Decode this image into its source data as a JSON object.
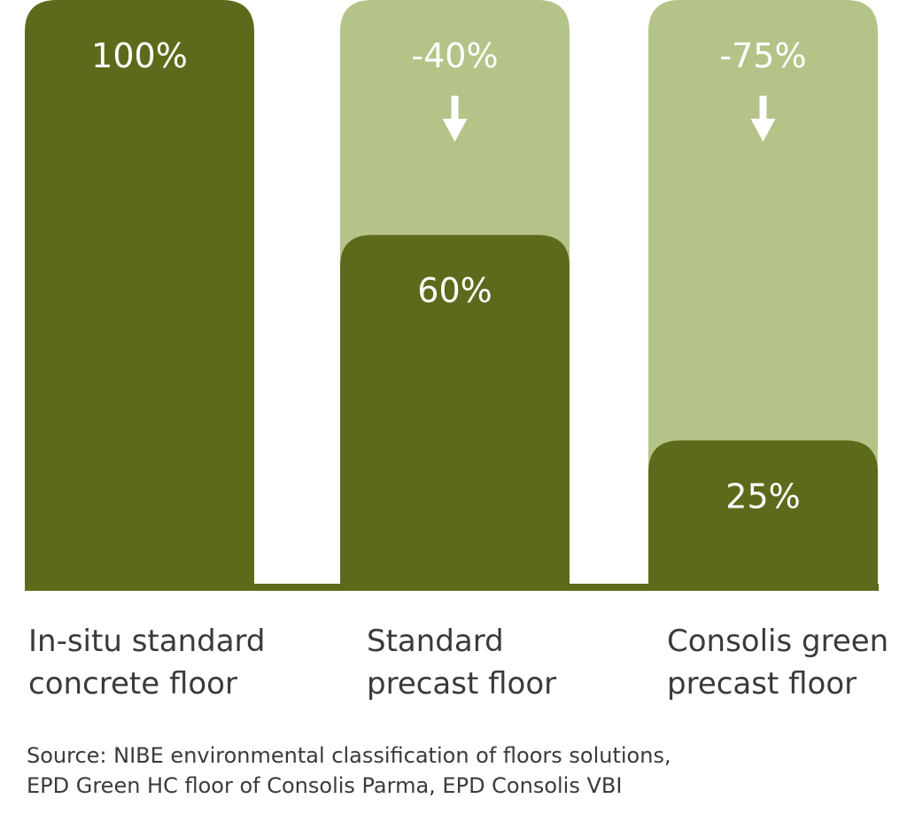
{
  "colors": {
    "dark_bar": "#5e6a1b",
    "light_bar": "#b4c387",
    "label_text": "#ffffff",
    "axis_text": "#3a3a3a"
  },
  "chart_data": {
    "type": "bar",
    "categories": [
      [
        "In-situ standard",
        "concrete floor"
      ],
      [
        "Standard",
        "precast floor"
      ],
      [
        "Consolis green",
        "precast floor"
      ]
    ],
    "values": [
      100,
      60,
      25
    ],
    "value_labels": [
      "100%",
      "60%",
      "25%"
    ],
    "reductions": [
      null,
      -40,
      -75
    ],
    "reduction_labels": [
      "",
      "-40%",
      "-75%"
    ],
    "reduction_icon": "down-arrow-icon",
    "ylim": [
      0,
      100
    ],
    "grid": false,
    "legend": "none"
  },
  "source": [
    "Source: NIBE environmental classification of floors solutions,",
    "EPD Green HC floor of Consolis Parma, EPD Consolis VBI"
  ]
}
